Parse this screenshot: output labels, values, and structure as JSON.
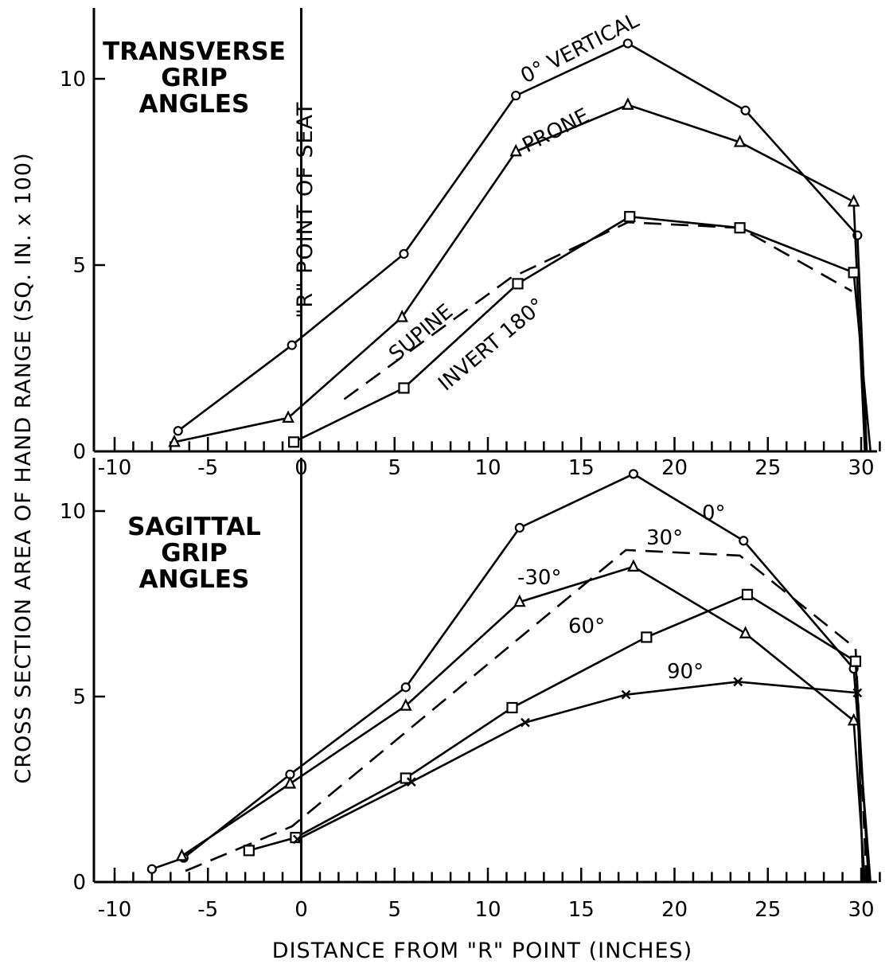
{
  "figure": {
    "ylabel": "CROSS SECTION AREA OF HAND RANGE (SQ. IN. x 100)",
    "xlabel": "DISTANCE FROM \"R\" POINT (INCHES)",
    "reference_line_label": "\"R\" POINT OF SEAT"
  },
  "chart_data": [
    {
      "type": "line",
      "title_lines": [
        "TRANSVERSE",
        "GRIP",
        "ANGLES"
      ],
      "xlim": [
        -10,
        31
      ],
      "ylim": [
        0,
        11.5
      ],
      "x_ticks": [
        -10,
        -5,
        0,
        5,
        10,
        15,
        20,
        25,
        30
      ],
      "y_ticks": [
        0,
        5,
        10
      ],
      "x_tick_labels": [
        "-10",
        "-5",
        "0",
        "5",
        "10",
        "15",
        "20",
        "25",
        "30"
      ],
      "y_tick_labels": [
        "0",
        "5",
        "10"
      ],
      "series": [
        {
          "name": "0° VERTICAL",
          "marker": "circle",
          "dash": "solid",
          "points": [
            [
              -6.6,
              0.55
            ],
            [
              -0.5,
              2.85
            ],
            [
              5.5,
              5.3
            ],
            [
              11.5,
              9.55
            ],
            [
              17.5,
              10.95
            ],
            [
              23.8,
              9.15
            ],
            [
              29.8,
              5.8
            ],
            [
              30.3,
              0
            ]
          ]
        },
        {
          "name": "PRONE",
          "marker": "triangle",
          "dash": "solid",
          "points": [
            [
              -6.8,
              0.25
            ],
            [
              -0.7,
              0.9
            ],
            [
              5.4,
              3.6
            ],
            [
              11.5,
              8.05
            ],
            [
              17.5,
              9.3
            ],
            [
              23.5,
              8.3
            ],
            [
              29.6,
              6.7
            ],
            [
              30.2,
              0
            ]
          ]
        },
        {
          "name": "SUPINE",
          "marker": "none",
          "dash": "dashed",
          "points": [
            [
              2.3,
              1.4
            ],
            [
              11.2,
              4.65
            ],
            [
              17.5,
              6.15
            ],
            [
              23.5,
              6.0
            ],
            [
              29.5,
              4.3
            ]
          ]
        },
        {
          "name": "INVERT 180°",
          "marker": "square",
          "dash": "solid",
          "points": [
            [
              -0.4,
              0.25
            ],
            [
              5.5,
              1.7
            ],
            [
              11.6,
              4.5
            ],
            [
              17.6,
              6.3
            ],
            [
              23.5,
              6.0
            ],
            [
              29.6,
              4.8
            ],
            [
              30.5,
              0
            ]
          ]
        }
      ]
    },
    {
      "type": "line",
      "title_lines": [
        "SAGITTAL",
        "GRIP",
        "ANGLES"
      ],
      "xlim": [
        -10,
        31
      ],
      "ylim": [
        0,
        11.5
      ],
      "x_ticks": [
        -10,
        -5,
        0,
        5,
        10,
        15,
        20,
        25,
        30
      ],
      "y_ticks": [
        0,
        5,
        10
      ],
      "x_tick_labels": [
        "-10",
        "-5",
        "0",
        "5",
        "10",
        "15",
        "20",
        "25",
        "30"
      ],
      "y_tick_labels": [
        "0",
        "5",
        "10"
      ],
      "series": [
        {
          "name": "0°",
          "marker": "circle",
          "dash": "solid",
          "points": [
            [
              -8.0,
              0.35
            ],
            [
              -6.3,
              0.65
            ],
            [
              -0.6,
              2.9
            ],
            [
              5.6,
              5.25
            ],
            [
              11.7,
              9.55
            ],
            [
              17.8,
              11.0
            ],
            [
              23.7,
              9.2
            ],
            [
              29.6,
              5.75
            ],
            [
              30.5,
              0
            ]
          ]
        },
        {
          "name": "30°",
          "marker": "none",
          "dash": "dashed",
          "points": [
            [
              -6.2,
              0.3
            ],
            [
              -0.5,
              1.5
            ],
            [
              5.5,
              4.0
            ],
            [
              11.5,
              6.5
            ],
            [
              17.4,
              8.95
            ],
            [
              23.5,
              8.8
            ],
            [
              29.7,
              6.3
            ],
            [
              30.3,
              0
            ]
          ]
        },
        {
          "name": "-30°",
          "marker": "triangle",
          "dash": "solid",
          "points": [
            [
              -6.4,
              0.7
            ],
            [
              -0.6,
              2.65
            ],
            [
              5.6,
              4.75
            ],
            [
              11.7,
              7.55
            ],
            [
              17.8,
              8.5
            ],
            [
              23.8,
              6.7
            ],
            [
              29.6,
              4.35
            ],
            [
              30.2,
              0
            ]
          ]
        },
        {
          "name": "60°",
          "marker": "square",
          "dash": "solid",
          "points": [
            [
              -2.8,
              0.85
            ],
            [
              -0.3,
              1.2
            ],
            [
              5.6,
              2.8
            ],
            [
              11.3,
              4.7
            ],
            [
              18.5,
              6.6
            ],
            [
              23.9,
              7.75
            ],
            [
              29.7,
              5.95
            ],
            [
              30.4,
              0
            ]
          ]
        },
        {
          "name": "90°",
          "marker": "x",
          "dash": "solid",
          "points": [
            [
              -0.2,
              1.15
            ],
            [
              5.9,
              2.7
            ],
            [
              12.0,
              4.3
            ],
            [
              17.4,
              5.05
            ],
            [
              23.4,
              5.4
            ],
            [
              29.8,
              5.1
            ],
            [
              30.1,
              0
            ]
          ]
        }
      ]
    }
  ]
}
